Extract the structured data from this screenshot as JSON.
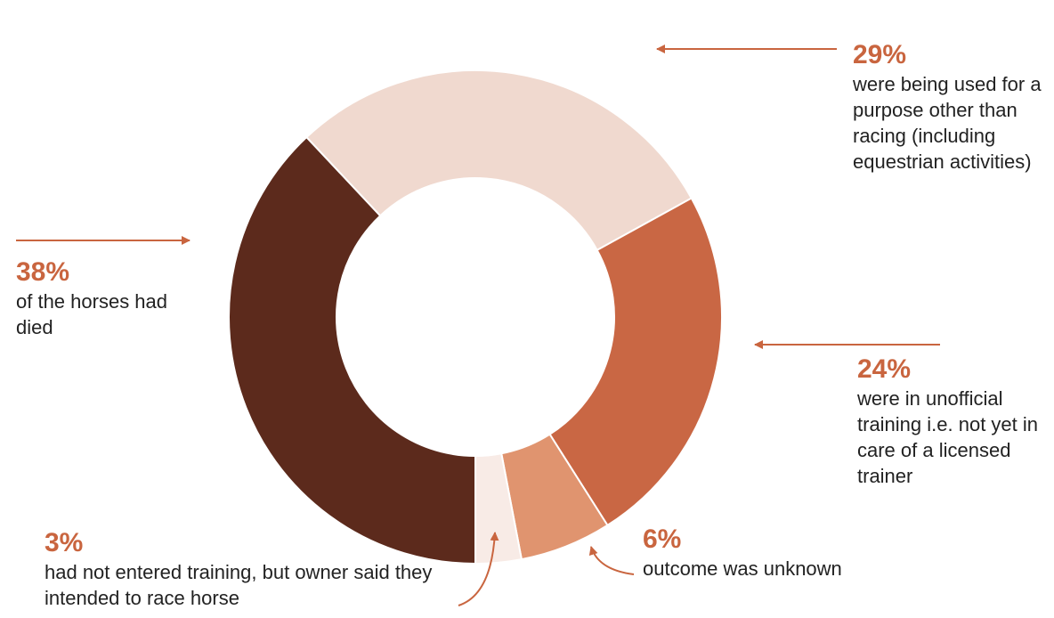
{
  "chart_data": {
    "type": "donut",
    "categories": [
      "of the horses had died",
      "were being used for a purpose other than racing (including equestrian activities)",
      "were in unofficial training i.e. not yet in care of a licensed trainer",
      "outcome was unknown",
      "had not entered training, but owner said they intended to race horse"
    ],
    "values": [
      38,
      29,
      24,
      6,
      3
    ],
    "value_labels": [
      "38%",
      "29%",
      "24%",
      "6%",
      "3%"
    ],
    "colors": [
      "#5c2a1c",
      "#f0d9cf",
      "#c96744",
      "#e0946f",
      "#f8ebe6"
    ]
  }
}
